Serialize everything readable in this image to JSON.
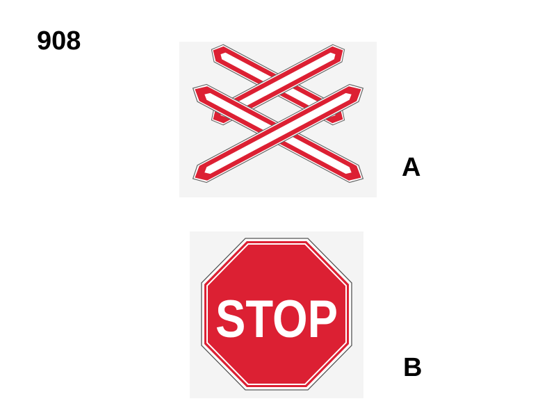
{
  "question": {
    "number": "908"
  },
  "options": [
    {
      "label": "A",
      "sign": "double-cross-railway-crossing-sign"
    },
    {
      "label": "B",
      "sign": "stop-sign",
      "sign_text": "STOP"
    }
  ],
  "colors": {
    "sign_red": "#DC2033",
    "sign_white": "#FFFFFF",
    "outline_gray": "#555555"
  }
}
